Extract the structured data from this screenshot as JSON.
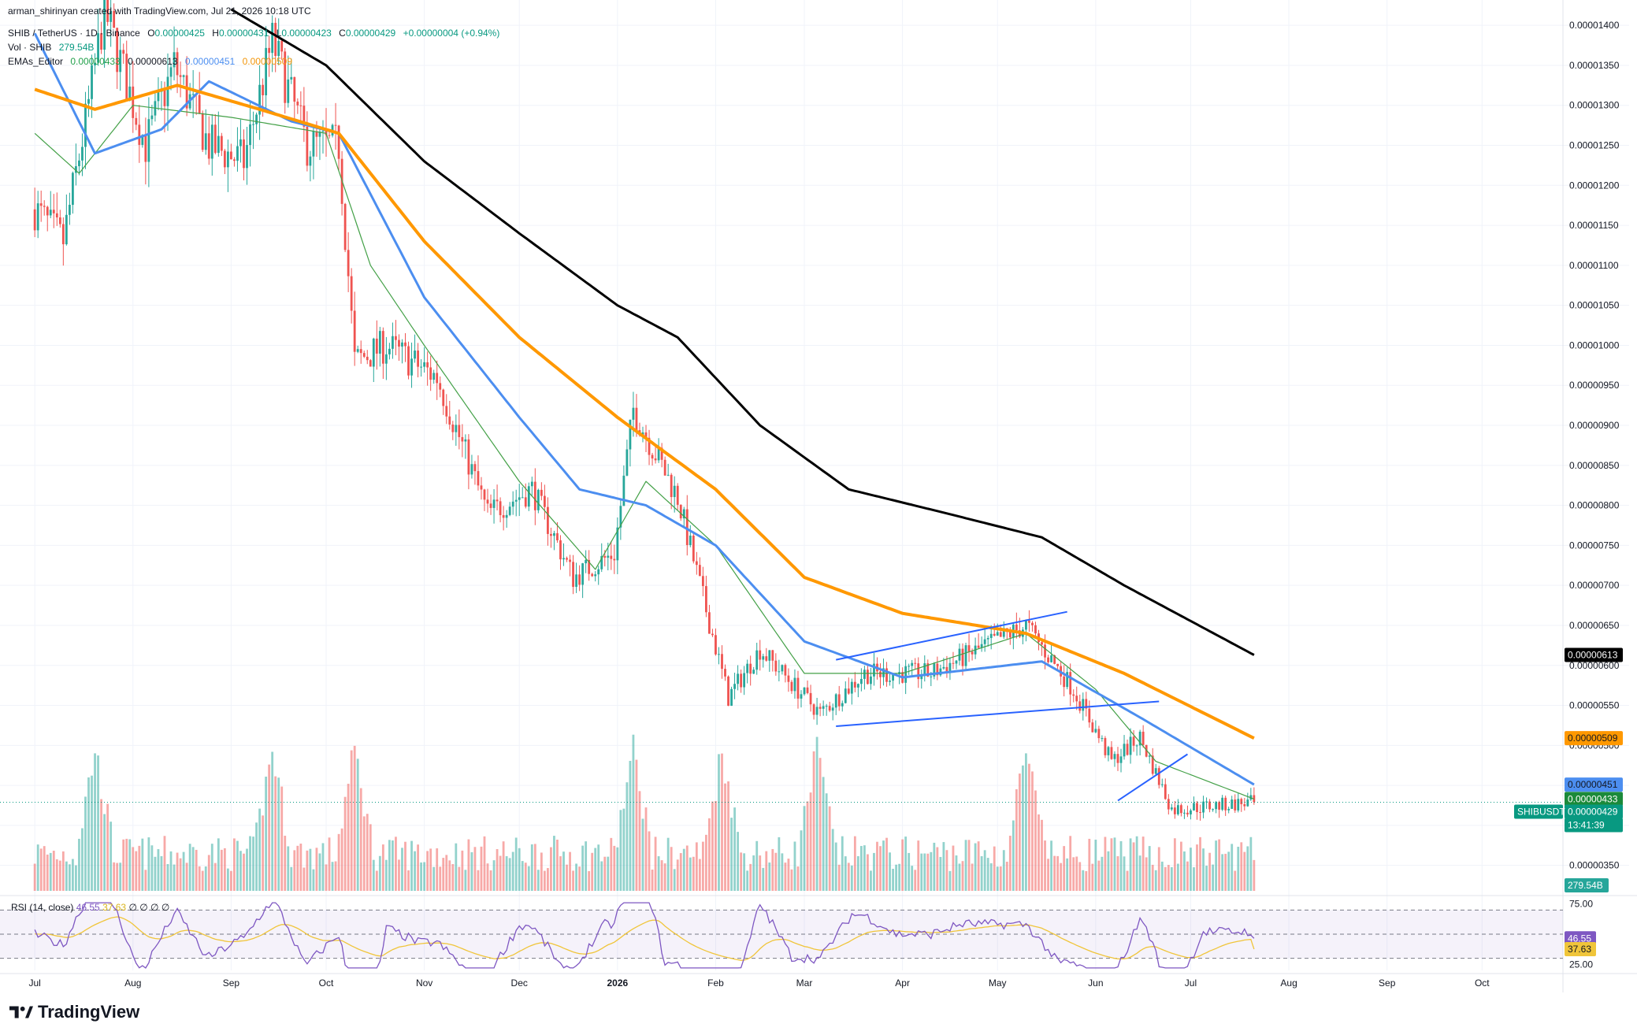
{
  "header": {
    "credit": "arman_shirinyan created with TradingView.com, Jul 21, 2026 10:18 UTC",
    "symbol": "SHIB / TetherUS · 1D · Binance",
    "open_label": "O",
    "open": "0.00000425",
    "high_label": "H",
    "high": "0.00000431",
    "low_label": "L",
    "low": "0.00000423",
    "close_label": "C",
    "close": "0.00000429",
    "change": "+0.00000004 (+0.94%)",
    "vol_label": "Vol · SHIB",
    "vol_value": "279.54B",
    "ema_label": "EMAs_Editor",
    "ema_values": [
      "0.00000433",
      "0.00000613",
      "0.00000451",
      "0.00000509"
    ]
  },
  "rsi_legend": {
    "label": "RSI (14, close)",
    "value": "46.55",
    "ma": "37.63",
    "extras": [
      "∅",
      "∅",
      "∅",
      "∅"
    ]
  },
  "brand": "TradingView",
  "colors": {
    "up": "#26a69a",
    "down": "#ef5350",
    "ema20": "#43a047",
    "ema50": "#4c8ef0",
    "ema100": "#ff9800",
    "ema200": "#000000",
    "trendline": "#2962ff",
    "rsi": "#7e57c2",
    "rsi_ma": "#f0c53a"
  },
  "chart_data": [
    {
      "type": "candlestick",
      "title": "SHIB / TetherUS · 1D · Binance",
      "y_axis_ticks": [
        "0.00001400",
        "0.00001350",
        "0.00001300",
        "0.00001250",
        "0.00001200",
        "0.00001150",
        "0.00001100",
        "0.00001050",
        "0.00001000",
        "0.00000950",
        "0.00000900",
        "0.00000850",
        "0.00000800",
        "0.00000750",
        "0.00000700",
        "0.00000650",
        "0.00000600",
        "0.00000550",
        "0.00000500",
        "0.00000450",
        "0.00000400",
        "0.00000350"
      ],
      "x_axis_ticks": [
        "Jul",
        "Aug",
        "Sep",
        "Oct",
        "Nov",
        "Dec",
        "2026",
        "Feb",
        "Mar",
        "Apr",
        "May",
        "Jun",
        "Jul",
        "Aug",
        "Sep",
        "Oct"
      ],
      "ylim": [
        3.3e-06,
        1.41e-05
      ],
      "price_path": [
        [
          "2025-07-01",
          1.17e-05
        ],
        [
          "2025-07-10",
          1.13e-05
        ],
        [
          "2025-07-18",
          1.3e-05
        ],
        [
          "2025-07-23",
          1.42e-05
        ],
        [
          "2025-08-05",
          1.25e-05
        ],
        [
          "2025-08-14",
          1.35e-05
        ],
        [
          "2025-08-25",
          1.25e-05
        ],
        [
          "2025-09-05",
          1.23e-05
        ],
        [
          "2025-09-14",
          1.38e-05
        ],
        [
          "2025-09-25",
          1.25e-05
        ],
        [
          "2025-10-05",
          1.25e-05
        ],
        [
          "2025-10-10",
          9.8e-06
        ],
        [
          "2025-10-20",
          1e-05
        ],
        [
          "2025-11-05",
          9.6e-06
        ],
        [
          "2025-11-21",
          7.9e-06
        ],
        [
          "2025-12-05",
          8.2e-06
        ],
        [
          "2025-12-18",
          7.1e-06
        ],
        [
          "2025-12-31",
          7.4e-06
        ],
        [
          "2026-01-06",
          9.2e-06
        ],
        [
          "2026-01-20",
          8.1e-06
        ],
        [
          "2026-02-05",
          5.6e-06
        ],
        [
          "2026-02-15",
          6.2e-06
        ],
        [
          "2026-03-06",
          5.4e-06
        ],
        [
          "2026-03-20",
          5.9e-06
        ],
        [
          "2026-04-10",
          5.9e-06
        ],
        [
          "2026-05-10",
          6.5e-06
        ],
        [
          "2026-05-25",
          5.7e-06
        ],
        [
          "2026-06-06",
          4.8e-06
        ],
        [
          "2026-06-15",
          5.1e-06
        ],
        [
          "2026-06-25",
          4.2e-06
        ],
        [
          "2026-07-10",
          4.25e-06
        ],
        [
          "2026-07-21",
          4.29e-06
        ]
      ],
      "ema_series": [
        {
          "name": "",
          "period": 20,
          "points": [
            [
              "2025-07-01",
              1.265e-05
            ],
            [
              "2025-07-15",
              1.215e-05
            ],
            [
              "2025-08-01",
              1.3e-05
            ],
            [
              "2025-09-01",
              1.285e-05
            ],
            [
              "2025-10-01",
              1.265e-05
            ],
            [
              "2025-10-15",
              1.1e-05
            ],
            [
              "2025-11-01",
              1e-05
            ],
            [
              "2025-12-01",
              8.3e-06
            ],
            [
              "2025-12-25",
              7.2e-06
            ],
            [
              "2026-01-10",
              8.3e-06
            ],
            [
              "2026-02-01",
              7.5e-06
            ],
            [
              "2026-03-01",
              5.9e-06
            ],
            [
              "2026-04-01",
              5.9e-06
            ],
            [
              "2026-05-10",
              6.4e-06
            ],
            [
              "2026-06-01",
              5.7e-06
            ],
            [
              "2026-06-20",
              4.8e-06
            ],
            [
              "2026-07-21",
              4.33e-06
            ]
          ]
        },
        {
          "name": "",
          "period": 50,
          "points": [
            [
              "2025-07-01",
              1.39e-05
            ],
            [
              "2025-07-20",
              1.24e-05
            ],
            [
              "2025-08-10",
              1.27e-05
            ],
            [
              "2025-08-25",
              1.33e-05
            ],
            [
              "2025-09-20",
              1.28e-05
            ],
            [
              "2025-10-05",
              1.265e-05
            ],
            [
              "2025-11-01",
              1.06e-05
            ],
            [
              "2025-12-01",
              9.1e-06
            ],
            [
              "2025-12-20",
              8.2e-06
            ],
            [
              "2026-01-10",
              8e-06
            ],
            [
              "2026-02-01",
              7.5e-06
            ],
            [
              "2026-03-01",
              6.3e-06
            ],
            [
              "2026-04-01",
              5.85e-06
            ],
            [
              "2026-05-15",
              6.05e-06
            ],
            [
              "2026-06-15",
              5.35e-06
            ],
            [
              "2026-07-21",
              4.51e-06
            ]
          ]
        },
        {
          "name": "",
          "period": 100,
          "points": [
            [
              "2025-07-01",
              1.32e-05
            ],
            [
              "2025-07-20",
              1.295e-05
            ],
            [
              "2025-08-15",
              1.325e-05
            ],
            [
              "2025-09-10",
              1.295e-05
            ],
            [
              "2025-10-05",
              1.265e-05
            ],
            [
              "2025-11-01",
              1.13e-05
            ],
            [
              "2025-12-01",
              1.01e-05
            ],
            [
              "2026-01-01",
              9.1e-06
            ],
            [
              "2026-02-01",
              8.2e-06
            ],
            [
              "2026-03-01",
              7.1e-06
            ],
            [
              "2026-04-01",
              6.65e-06
            ],
            [
              "2026-05-10",
              6.4e-06
            ],
            [
              "2026-06-10",
              5.9e-06
            ],
            [
              "2026-07-21",
              5.09e-06
            ]
          ]
        },
        {
          "name": "",
          "period": 200,
          "points": [
            [
              "2025-09-01",
              1.42e-05
            ],
            [
              "2025-10-01",
              1.35e-05
            ],
            [
              "2025-11-01",
              1.23e-05
            ],
            [
              "2025-12-01",
              1.14e-05
            ],
            [
              "2026-01-01",
              1.05e-05
            ],
            [
              "2026-01-20",
              1.01e-05
            ],
            [
              "2026-02-15",
              9e-06
            ],
            [
              "2026-03-15",
              8.2e-06
            ],
            [
              "2026-04-15",
              7.9e-06
            ],
            [
              "2026-05-15",
              7.6e-06
            ],
            [
              "2026-06-10",
              7e-06
            ],
            [
              "2026-07-21",
              6.13e-06
            ]
          ]
        }
      ],
      "trendlines": [
        {
          "from": [
            "2026-03-11",
            6.07e-06
          ],
          "to": [
            "2026-05-23",
            6.67e-06
          ]
        },
        {
          "from": [
            "2026-03-11",
            5.24e-06
          ],
          "to": [
            "2026-06-21",
            5.55e-06
          ]
        },
        {
          "from": [
            "2026-06-08",
            4.31e-06
          ],
          "to": [
            "2026-06-30",
            4.89e-06
          ]
        }
      ],
      "last_labels": [
        {
          "text": "0.00000613",
          "value": 6.13e-06,
          "bg": "#000000",
          "fg": "#ffffff"
        },
        {
          "text": "0.00000509",
          "value": 5.09e-06,
          "bg": "#ff9800",
          "fg": "#131722"
        },
        {
          "text": "0.00000451",
          "value": 4.51e-06,
          "bg": "#4c8ef0",
          "fg": "#131722"
        },
        {
          "text": "0.00000433",
          "value": 4.33e-06,
          "bg": "#1b8a3a",
          "fg": "#ffffff"
        }
      ],
      "price_label": {
        "symbol": "SHIBUSDT",
        "price": "0.00000429",
        "countdown": "13:41:39",
        "value": 4.29e-06
      },
      "volume_label": "279.54B",
      "volume_peak_days": [
        "2025-07-20",
        "2025-09-14",
        "2025-10-10",
        "2026-01-06",
        "2026-02-03",
        "2026-03-05",
        "2026-05-10"
      ]
    },
    {
      "type": "line",
      "title": "RSI (14, close)",
      "y_axis_ticks": [
        "75.00",
        "25.00"
      ],
      "ylim": [
        20,
        80
      ],
      "bands": [
        70,
        50,
        30
      ],
      "series": [
        {
          "name": "",
          "last": 46.55
        },
        {
          "name": "",
          "last": 37.63
        }
      ],
      "labels": [
        {
          "text": "46.55",
          "value": 46.55,
          "bg": "#7e57c2",
          "fg": "#ffffff"
        },
        {
          "text": "37.63",
          "value": 37.63,
          "bg": "#f0c53a",
          "fg": "#131722"
        }
      ]
    }
  ]
}
